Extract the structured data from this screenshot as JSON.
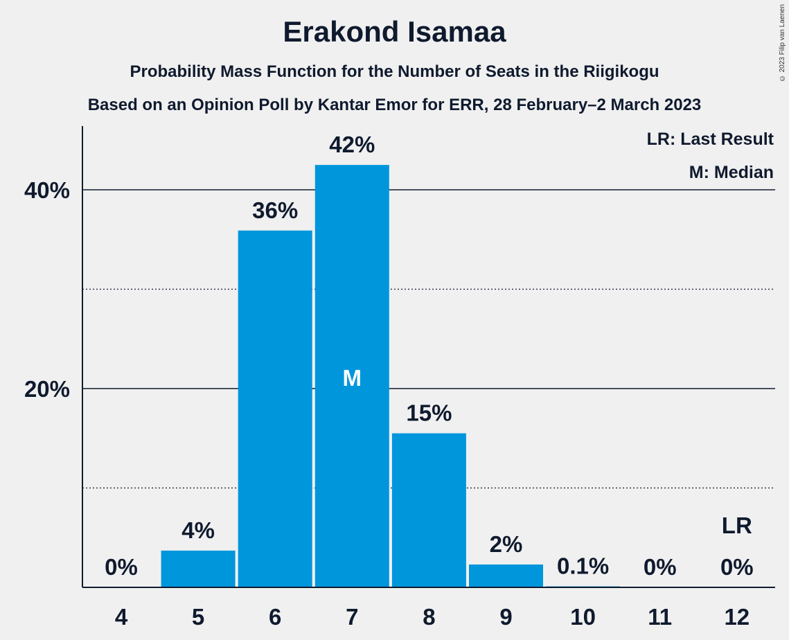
{
  "title": "Erakond Isamaa",
  "subtitle": "Probability Mass Function for the Number of Seats in the Riigikogu",
  "subtitle2": "Based on an Opinion Poll by Kantar Emor for ERR, 28 February–2 March 2023",
  "copyright": "© 2023 Filip van Laenen",
  "legend": {
    "last_result": "LR: Last Result",
    "median": "M: Median"
  },
  "colors": {
    "bar": "#0096dc",
    "text": "#0f1a2e",
    "background": "#f0f0f0"
  },
  "chart_data": {
    "type": "bar",
    "title": "Erakond Isamaa",
    "xlabel": "",
    "ylabel": "",
    "categories": [
      "4",
      "5",
      "6",
      "7",
      "8",
      "9",
      "10",
      "11",
      "12"
    ],
    "values": [
      0,
      3.7,
      35.9,
      42.5,
      15.5,
      2.3,
      0.1,
      0,
      0
    ],
    "value_labels": [
      "0%",
      "4%",
      "36%",
      "42%",
      "15%",
      "2%",
      "0.1%",
      "0%",
      "0%"
    ],
    "y_ticks": [
      {
        "value": 20,
        "label": "20%"
      },
      {
        "value": 40,
        "label": "40%"
      }
    ],
    "y_minor_gridlines": [
      10,
      30
    ],
    "ylim": [
      0,
      46
    ],
    "median_category": "7",
    "median_label": "M",
    "last_result_category": "12",
    "last_result_label": "LR",
    "legend_position": "top-right"
  }
}
